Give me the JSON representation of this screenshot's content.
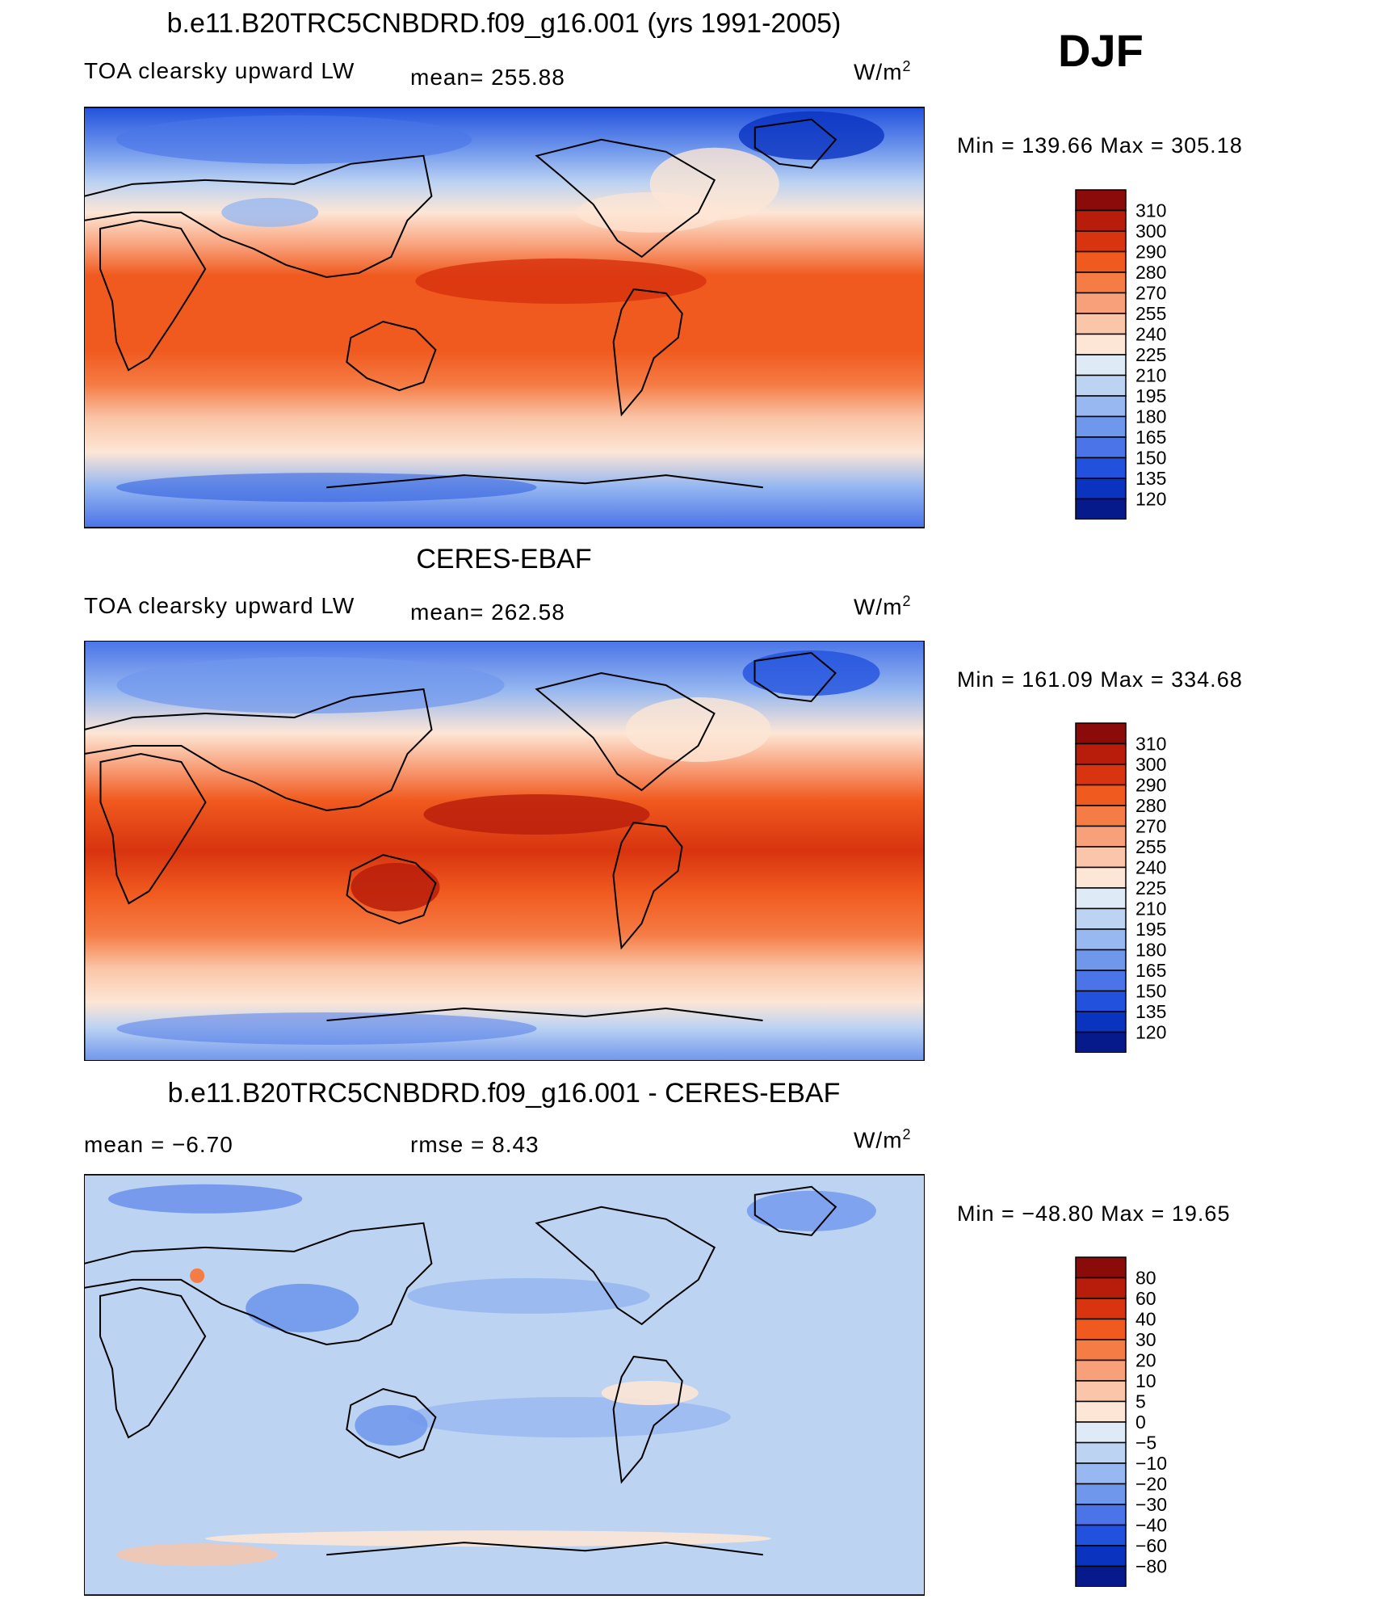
{
  "season": "DJF",
  "panels": [
    {
      "title": "b.e11.B20TRC5CNBDRD.f09_g16.001 (yrs 1991-2005)",
      "left_label": "TOA clearsky upward LW",
      "stat1": "mean= 255.88",
      "stat2": "",
      "units": "W/m",
      "units_sup": "2",
      "minmax": "Min  =  139.66  Max  =  305.18",
      "colorbar": {
        "labels": [
          "310",
          "300",
          "290",
          "280",
          "270",
          "255",
          "240",
          "225",
          "210",
          "195",
          "180",
          "165",
          "150",
          "135",
          "120"
        ],
        "colors": [
          "#8b0a0a",
          "#b81d0b",
          "#d8340f",
          "#f05a1f",
          "#f57c45",
          "#f8a07a",
          "#fac5a8",
          "#fde6d5",
          "#deebf6",
          "#bcd3f2",
          "#97b8f0",
          "#6f97ec",
          "#4a74e8",
          "#2251dd",
          "#0a33c0",
          "#061a8c"
        ]
      }
    },
    {
      "title": "CERES-EBAF",
      "left_label": "TOA clearsky upward LW",
      "stat1": "mean= 262.58",
      "stat2": "",
      "units": "W/m",
      "units_sup": "2",
      "minmax": "Min  =  161.09  Max  =  334.68",
      "colorbar": {
        "labels": [
          "310",
          "300",
          "290",
          "280",
          "270",
          "255",
          "240",
          "225",
          "210",
          "195",
          "180",
          "165",
          "150",
          "135",
          "120"
        ],
        "colors": [
          "#8b0a0a",
          "#b81d0b",
          "#d8340f",
          "#f05a1f",
          "#f57c45",
          "#f8a07a",
          "#fac5a8",
          "#fde6d5",
          "#deebf6",
          "#bcd3f2",
          "#97b8f0",
          "#6f97ec",
          "#4a74e8",
          "#2251dd",
          "#0a33c0",
          "#061a8c"
        ]
      }
    },
    {
      "title": "b.e11.B20TRC5CNBDRD.f09_g16.001 - CERES-EBAF",
      "left_label": "mean  =    −6.70",
      "stat1": "rmse  =     8.43",
      "stat2": "",
      "units": "W/m",
      "units_sup": "2",
      "minmax": "Min  =  −48.80  Max  =    19.65",
      "colorbar": {
        "labels": [
          "80",
          "60",
          "40",
          "30",
          "20",
          "10",
          "5",
          "0",
          "−5",
          "−10",
          "−20",
          "−30",
          "−40",
          "−60",
          "−80"
        ],
        "colors": [
          "#8b0a0a",
          "#b81d0b",
          "#d8340f",
          "#f05a1f",
          "#f57c45",
          "#f8a07a",
          "#fac5a8",
          "#fde6d5",
          "#deebf6",
          "#bcd3f2",
          "#97b8f0",
          "#6f97ec",
          "#4a74e8",
          "#2251dd",
          "#0a33c0",
          "#061a8c"
        ]
      }
    }
  ]
}
